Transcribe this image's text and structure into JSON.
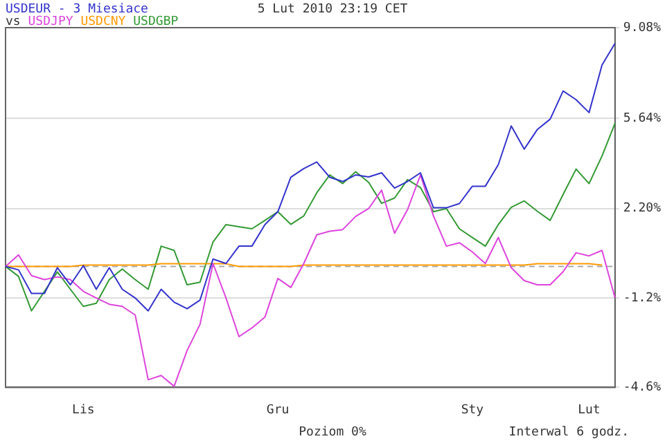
{
  "chart_data": {
    "type": "line",
    "title": "USDEUR - 3 Miesiace",
    "legend_title": "vs",
    "legend": "top left",
    "grid": "y",
    "marker": "none",
    "line_style": "solid",
    "categories": [
      null,
      null,
      null,
      null,
      null,
      null,
      "Lis",
      null,
      null,
      null,
      null,
      null,
      null,
      null,
      null,
      null,
      null,
      null,
      null,
      null,
      null,
      "Gru",
      null,
      null,
      null,
      null,
      null,
      null,
      null,
      null,
      null,
      null,
      null,
      null,
      null,
      null,
      "Sty",
      null,
      null,
      null,
      null,
      null,
      null,
      null,
      null,
      "Lut",
      null,
      null
    ],
    "ylim": [
      -4.6,
      9.08
    ],
    "yticks": [
      {
        "value": -4.6,
        "label": "-4.6%"
      },
      {
        "value": -1.2,
        "label": "-1.2%"
      },
      {
        "value": 2.2,
        "label": "2.20%"
      },
      {
        "value": 5.64,
        "label": "5.64%"
      },
      {
        "value": 9.08,
        "label": "9.08%"
      }
    ],
    "ref_lines": [
      {
        "axis": "y",
        "value": 0,
        "color": "#aaaaaa",
        "line_style": "dashed"
      }
    ],
    "annotations": [
      "5 Lut 2010 23:19 CET",
      "Interwal 6 godz.",
      "Poziom 0%"
    ],
    "series": [
      {
        "color": "#3333cc",
        "values": [
          0,
          -0.13,
          -1.03,
          -1.03,
          -0.05,
          -0.7,
          0.03,
          -0.87,
          -0.05,
          -0.87,
          -1.2,
          -1.69,
          -0.87,
          -1.36,
          -1.61,
          -1.28,
          0.28,
          0.11,
          0.77,
          0.77,
          1.59,
          2.08,
          3.39,
          3.72,
          3.97,
          3.39,
          3.23,
          3.48,
          3.4,
          3.56,
          2.98,
          3.23,
          3.56,
          2.23,
          2.23,
          2.39,
          3.05,
          3.05,
          3.87,
          5.34,
          4.46,
          5.2,
          5.6,
          6.67,
          6.34,
          5.85,
          7.66,
          8.48
        ]
      },
      {
        "name": "USDJPY",
        "color": "#dd44dd",
        "values": [
          0,
          0.44,
          -0.35,
          -0.5,
          -0.4,
          -0.5,
          -0.95,
          -1.2,
          -1.44,
          -1.52,
          -1.85,
          -4.31,
          -4.15,
          -4.56,
          -3.2,
          -2.2,
          0.11,
          -1.2,
          -2.67,
          -2.34,
          -1.93,
          -0.46,
          -0.8,
          0.11,
          1.2,
          1.34,
          1.4,
          1.9,
          2.2,
          2.9,
          1.26,
          2.16,
          3.48,
          1.92,
          0.77,
          0.9,
          0.55,
          0.11,
          1.1,
          -0.05,
          -0.54,
          -0.7,
          -0.7,
          -0.2,
          0.52,
          0.4,
          0.61,
          -1.2
        ]
      },
      {
        "name": "USDCNY",
        "color": "#ff9900",
        "values": [
          0,
          0,
          0,
          0,
          0,
          0,
          0.05,
          0.05,
          0.05,
          0.05,
          0.05,
          0.05,
          0.1,
          0.1,
          0.1,
          0.1,
          0.1,
          0.1,
          0,
          0,
          0,
          0,
          0,
          0.05,
          0.05,
          0.05,
          0.05,
          0.05,
          0.05,
          0.05,
          0.05,
          0.05,
          0.05,
          0.05,
          0.05,
          0.05,
          0.05,
          0.05,
          0.05,
          0.05,
          0.05,
          0.1,
          0.1,
          0.1,
          0.1,
          0.1,
          0.05,
          null
        ]
      },
      {
        "name": "USDGBP",
        "color": "#339933",
        "values": [
          0,
          -0.38,
          -1.69,
          -0.95,
          -0.21,
          -0.87,
          -1.52,
          -1.4,
          -0.5,
          -0.1,
          -0.5,
          -0.87,
          0.77,
          0.61,
          -0.7,
          -0.6,
          0.93,
          1.59,
          1.51,
          1.43,
          1.75,
          2.08,
          1.6,
          1.92,
          2.8,
          3.48,
          3.15,
          3.6,
          3.2,
          2.4,
          2.6,
          3.3,
          3,
          2.08,
          2.2,
          1.43,
          1.1,
          0.77,
          1.59,
          2.25,
          2.49,
          2.1,
          1.75,
          2.74,
          3.7,
          3.15,
          4.2,
          5.44
        ]
      }
    ]
  }
}
